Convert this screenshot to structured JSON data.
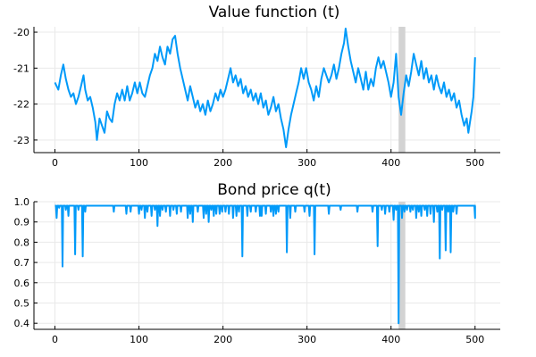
{
  "chart_data": [
    {
      "type": "line",
      "title": "Value function (t)",
      "xlabel": "",
      "ylabel": "",
      "xlim": [
        -25,
        530
      ],
      "ylim": [
        -23.35,
        -19.85
      ],
      "xticks": [
        0,
        100,
        200,
        300,
        400,
        500
      ],
      "yticks": [
        -23,
        -22,
        -21,
        -20
      ],
      "grid": true,
      "legend": "none",
      "series_color": "#009af9",
      "shade_color": "#d3d3d3",
      "shaded_x": [
        409,
        417
      ],
      "points": [
        [
          0,
          -21.4
        ],
        [
          4,
          -21.6
        ],
        [
          7,
          -21.2
        ],
        [
          10,
          -20.9
        ],
        [
          13,
          -21.3
        ],
        [
          16,
          -21.6
        ],
        [
          19,
          -21.8
        ],
        [
          22,
          -21.7
        ],
        [
          25,
          -22.0
        ],
        [
          28,
          -21.8
        ],
        [
          31,
          -21.5
        ],
        [
          34,
          -21.2
        ],
        [
          36,
          -21.6
        ],
        [
          39,
          -21.9
        ],
        [
          42,
          -21.8
        ],
        [
          45,
          -22.1
        ],
        [
          48,
          -22.5
        ],
        [
          50,
          -23.0
        ],
        [
          53,
          -22.4
        ],
        [
          56,
          -22.6
        ],
        [
          59,
          -22.8
        ],
        [
          62,
          -22.2
        ],
        [
          65,
          -22.4
        ],
        [
          68,
          -22.5
        ],
        [
          71,
          -22.0
        ],
        [
          74,
          -21.7
        ],
        [
          77,
          -21.9
        ],
        [
          80,
          -21.6
        ],
        [
          83,
          -21.9
        ],
        [
          86,
          -21.5
        ],
        [
          89,
          -21.9
        ],
        [
          92,
          -21.7
        ],
        [
          95,
          -21.4
        ],
        [
          98,
          -21.7
        ],
        [
          101,
          -21.4
        ],
        [
          104,
          -21.7
        ],
        [
          107,
          -21.8
        ],
        [
          110,
          -21.5
        ],
        [
          113,
          -21.2
        ],
        [
          116,
          -21.0
        ],
        [
          119,
          -20.6
        ],
        [
          122,
          -20.8
        ],
        [
          125,
          -20.4
        ],
        [
          128,
          -20.7
        ],
        [
          131,
          -20.9
        ],
        [
          134,
          -20.4
        ],
        [
          137,
          -20.6
        ],
        [
          140,
          -20.2
        ],
        [
          143,
          -20.1
        ],
        [
          146,
          -20.6
        ],
        [
          149,
          -21.0
        ],
        [
          152,
          -21.3
        ],
        [
          155,
          -21.6
        ],
        [
          158,
          -21.9
        ],
        [
          161,
          -21.5
        ],
        [
          164,
          -21.8
        ],
        [
          167,
          -22.1
        ],
        [
          170,
          -21.9
        ],
        [
          173,
          -22.2
        ],
        [
          176,
          -22.0
        ],
        [
          179,
          -22.3
        ],
        [
          182,
          -21.9
        ],
        [
          185,
          -22.2
        ],
        [
          188,
          -22.0
        ],
        [
          191,
          -21.7
        ],
        [
          194,
          -21.9
        ],
        [
          197,
          -21.6
        ],
        [
          200,
          -21.8
        ],
        [
          203,
          -21.6
        ],
        [
          206,
          -21.3
        ],
        [
          209,
          -21.0
        ],
        [
          212,
          -21.4
        ],
        [
          215,
          -21.2
        ],
        [
          218,
          -21.5
        ],
        [
          221,
          -21.3
        ],
        [
          224,
          -21.7
        ],
        [
          227,
          -21.5
        ],
        [
          230,
          -21.8
        ],
        [
          233,
          -21.6
        ],
        [
          236,
          -21.9
        ],
        [
          239,
          -21.7
        ],
        [
          242,
          -22.0
        ],
        [
          245,
          -21.7
        ],
        [
          248,
          -22.1
        ],
        [
          251,
          -21.9
        ],
        [
          254,
          -22.3
        ],
        [
          257,
          -22.1
        ],
        [
          260,
          -21.8
        ],
        [
          263,
          -22.2
        ],
        [
          266,
          -22.0
        ],
        [
          269,
          -22.4
        ],
        [
          272,
          -22.7
        ],
        [
          275,
          -23.2
        ],
        [
          278,
          -22.7
        ],
        [
          281,
          -22.3
        ],
        [
          284,
          -22.0
        ],
        [
          287,
          -21.7
        ],
        [
          290,
          -21.4
        ],
        [
          293,
          -21.0
        ],
        [
          296,
          -21.3
        ],
        [
          299,
          -21.0
        ],
        [
          302,
          -21.4
        ],
        [
          305,
          -21.6
        ],
        [
          308,
          -21.9
        ],
        [
          311,
          -21.5
        ],
        [
          314,
          -21.8
        ],
        [
          317,
          -21.3
        ],
        [
          320,
          -21.0
        ],
        [
          323,
          -21.2
        ],
        [
          326,
          -21.4
        ],
        [
          329,
          -21.2
        ],
        [
          332,
          -20.9
        ],
        [
          335,
          -21.3
        ],
        [
          338,
          -21.0
        ],
        [
          341,
          -20.6
        ],
        [
          344,
          -20.3
        ],
        [
          346,
          -19.9
        ],
        [
          349,
          -20.4
        ],
        [
          352,
          -20.8
        ],
        [
          355,
          -21.1
        ],
        [
          358,
          -21.4
        ],
        [
          361,
          -21.0
        ],
        [
          364,
          -21.3
        ],
        [
          367,
          -21.6
        ],
        [
          370,
          -21.1
        ],
        [
          373,
          -21.6
        ],
        [
          376,
          -21.3
        ],
        [
          379,
          -21.5
        ],
        [
          382,
          -21.0
        ],
        [
          385,
          -20.7
        ],
        [
          388,
          -21.0
        ],
        [
          391,
          -20.8
        ],
        [
          394,
          -21.1
        ],
        [
          397,
          -21.4
        ],
        [
          400,
          -21.8
        ],
        [
          403,
          -21.4
        ],
        [
          406,
          -20.6
        ],
        [
          409,
          -21.8
        ],
        [
          412,
          -22.3
        ],
        [
          415,
          -21.7
        ],
        [
          418,
          -21.2
        ],
        [
          421,
          -21.5
        ],
        [
          424,
          -21.1
        ],
        [
          427,
          -20.6
        ],
        [
          430,
          -20.9
        ],
        [
          433,
          -21.2
        ],
        [
          436,
          -20.8
        ],
        [
          439,
          -21.3
        ],
        [
          442,
          -21.0
        ],
        [
          445,
          -21.4
        ],
        [
          448,
          -21.2
        ],
        [
          451,
          -21.6
        ],
        [
          454,
          -21.2
        ],
        [
          457,
          -21.5
        ],
        [
          460,
          -21.7
        ],
        [
          463,
          -21.4
        ],
        [
          466,
          -21.8
        ],
        [
          469,
          -21.6
        ],
        [
          472,
          -21.9
        ],
        [
          475,
          -21.7
        ],
        [
          478,
          -22.1
        ],
        [
          481,
          -21.9
        ],
        [
          484,
          -22.3
        ],
        [
          487,
          -22.6
        ],
        [
          490,
          -22.4
        ],
        [
          492,
          -22.8
        ],
        [
          494,
          -22.5
        ],
        [
          496,
          -22.2
        ],
        [
          498,
          -21.8
        ],
        [
          499,
          -21.3
        ],
        [
          500,
          -20.7
        ]
      ]
    },
    {
      "type": "line",
      "title": "Bond price q(t)",
      "xlabel": "",
      "ylabel": "",
      "xlim": [
        -25,
        530
      ],
      "ylim": [
        0.37,
        1.0
      ],
      "xticks": [
        0,
        100,
        200,
        300,
        400,
        500
      ],
      "yticks": [
        0.4,
        0.5,
        0.6,
        0.7,
        0.8,
        0.9,
        1.0
      ],
      "ytick_labels": [
        "0.4",
        "0.5",
        "0.6",
        "0.7",
        "0.8",
        "0.9",
        "1.0"
      ],
      "grid": true,
      "legend": "none",
      "series_color": "#009af9",
      "shade_color": "#d3d3d3",
      "shaded_x": [
        409,
        417
      ],
      "baseline": 0.98,
      "dips": [
        [
          2,
          0.92
        ],
        [
          5,
          0.97
        ],
        [
          9,
          0.68
        ],
        [
          13,
          0.96
        ],
        [
          16,
          0.93
        ],
        [
          24,
          0.74
        ],
        [
          28,
          0.96
        ],
        [
          33,
          0.73
        ],
        [
          36,
          0.95
        ],
        [
          70,
          0.95
        ],
        [
          85,
          0.94
        ],
        [
          90,
          0.95
        ],
        [
          100,
          0.94
        ],
        [
          103,
          0.96
        ],
        [
          107,
          0.92
        ],
        [
          110,
          0.95
        ],
        [
          115,
          0.93
        ],
        [
          119,
          0.96
        ],
        [
          122,
          0.88
        ],
        [
          125,
          0.93
        ],
        [
          128,
          0.96
        ],
        [
          132,
          0.95
        ],
        [
          137,
          0.93
        ],
        [
          141,
          0.96
        ],
        [
          145,
          0.94
        ],
        [
          150,
          0.95
        ],
        [
          158,
          0.92
        ],
        [
          161,
          0.94
        ],
        [
          164,
          0.9
        ],
        [
          170,
          0.95
        ],
        [
          177,
          0.92
        ],
        [
          180,
          0.94
        ],
        [
          183,
          0.9
        ],
        [
          186,
          0.96
        ],
        [
          189,
          0.93
        ],
        [
          192,
          0.94
        ],
        [
          196,
          0.94
        ],
        [
          199,
          0.95
        ],
        [
          203,
          0.95
        ],
        [
          207,
          0.94
        ],
        [
          212,
          0.92
        ],
        [
          216,
          0.93
        ],
        [
          219,
          0.95
        ],
        [
          223,
          0.73
        ],
        [
          229,
          0.93
        ],
        [
          233,
          0.95
        ],
        [
          239,
          0.95
        ],
        [
          244,
          0.93
        ],
        [
          246,
          0.93
        ],
        [
          251,
          0.94
        ],
        [
          257,
          0.95
        ],
        [
          260,
          0.93
        ],
        [
          263,
          0.94
        ],
        [
          266,
          0.95
        ],
        [
          276,
          0.75
        ],
        [
          280,
          0.92
        ],
        [
          286,
          0.95
        ],
        [
          297,
          0.95
        ],
        [
          303,
          0.93
        ],
        [
          309,
          0.74
        ],
        [
          326,
          0.94
        ],
        [
          340,
          0.96
        ],
        [
          360,
          0.95
        ],
        [
          378,
          0.95
        ],
        [
          384,
          0.78
        ],
        [
          389,
          0.96
        ],
        [
          393,
          0.94
        ],
        [
          398,
          0.95
        ],
        [
          403,
          0.91
        ],
        [
          406,
          0.96
        ],
        [
          409,
          0.4
        ],
        [
          413,
          0.92
        ],
        [
          416,
          0.95
        ],
        [
          419,
          0.96
        ],
        [
          423,
          0.95
        ],
        [
          426,
          0.96
        ],
        [
          430,
          0.92
        ],
        [
          433,
          0.95
        ],
        [
          436,
          0.93
        ],
        [
          440,
          0.96
        ],
        [
          443,
          0.93
        ],
        [
          447,
          0.94
        ],
        [
          451,
          0.9
        ],
        [
          455,
          0.95
        ],
        [
          458,
          0.72
        ],
        [
          461,
          0.96
        ],
        [
          465,
          0.76
        ],
        [
          468,
          0.95
        ],
        [
          471,
          0.75
        ],
        [
          474,
          0.95
        ],
        [
          478,
          0.94
        ],
        [
          500,
          0.92
        ]
      ]
    }
  ]
}
